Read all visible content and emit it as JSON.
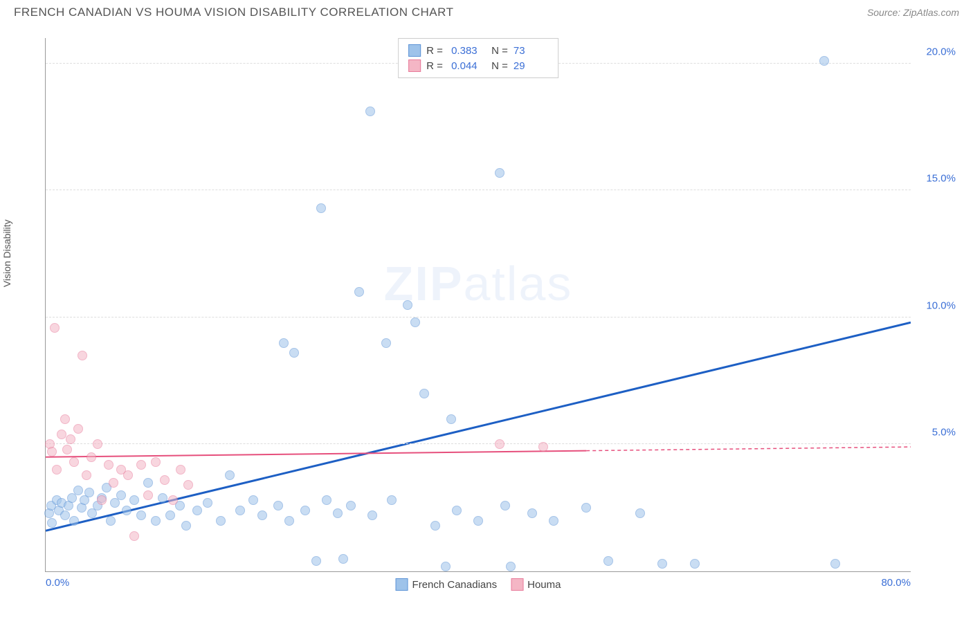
{
  "header": {
    "title": "FRENCH CANADIAN VS HOUMA VISION DISABILITY CORRELATION CHART",
    "source": "Source: ZipAtlas.com"
  },
  "chart": {
    "type": "scatter",
    "ylabel": "Vision Disability",
    "watermark": "ZIPatlas",
    "background_color": "#ffffff",
    "grid_color": "#dddddd",
    "axis_color": "#999999",
    "xlim": [
      0,
      80
    ],
    "ylim": [
      0,
      21
    ],
    "xtick_labels": [
      {
        "pos": 0,
        "label": "0.0%"
      },
      {
        "pos": 80,
        "label": "80.0%"
      }
    ],
    "ytick_labels": [
      {
        "pos": 5,
        "label": "5.0%"
      },
      {
        "pos": 10,
        "label": "10.0%"
      },
      {
        "pos": 15,
        "label": "15.0%"
      },
      {
        "pos": 20,
        "label": "20.0%"
      }
    ],
    "marker_radius": 7,
    "series": [
      {
        "name": "French Canadians",
        "fill": "#9ec3ea",
        "stroke": "#5c93d6",
        "R": "0.383",
        "N": "73",
        "trend": {
          "x1": 0,
          "y1": 1.6,
          "x2": 80,
          "y2": 9.8,
          "solid_to_x": 80,
          "color": "#1d5fc4",
          "width": 3
        },
        "points": [
          [
            0.3,
            2.3
          ],
          [
            0.5,
            2.6
          ],
          [
            0.6,
            1.9
          ],
          [
            1.0,
            2.8
          ],
          [
            1.2,
            2.4
          ],
          [
            1.5,
            2.7
          ],
          [
            1.8,
            2.2
          ],
          [
            2.1,
            2.6
          ],
          [
            2.4,
            2.9
          ],
          [
            2.6,
            2.0
          ],
          [
            3.0,
            3.2
          ],
          [
            3.3,
            2.5
          ],
          [
            3.6,
            2.8
          ],
          [
            4.0,
            3.1
          ],
          [
            4.3,
            2.3
          ],
          [
            4.8,
            2.6
          ],
          [
            5.2,
            2.9
          ],
          [
            5.6,
            3.3
          ],
          [
            6.0,
            2.0
          ],
          [
            6.4,
            2.7
          ],
          [
            7.0,
            3.0
          ],
          [
            7.5,
            2.4
          ],
          [
            8.2,
            2.8
          ],
          [
            8.8,
            2.2
          ],
          [
            9.5,
            3.5
          ],
          [
            10.2,
            2.0
          ],
          [
            10.8,
            2.9
          ],
          [
            11.5,
            2.2
          ],
          [
            12.4,
            2.6
          ],
          [
            13.0,
            1.8
          ],
          [
            14.0,
            2.4
          ],
          [
            15.0,
            2.7
          ],
          [
            16.2,
            2.0
          ],
          [
            17.0,
            3.8
          ],
          [
            18.0,
            2.4
          ],
          [
            19.2,
            2.8
          ],
          [
            20.0,
            2.2
          ],
          [
            21.5,
            2.6
          ],
          [
            22.0,
            9.0
          ],
          [
            22.5,
            2.0
          ],
          [
            23.0,
            8.6
          ],
          [
            24.0,
            2.4
          ],
          [
            25.0,
            0.4
          ],
          [
            25.5,
            14.3
          ],
          [
            26.0,
            2.8
          ],
          [
            27.0,
            2.3
          ],
          [
            27.5,
            0.5
          ],
          [
            28.2,
            2.6
          ],
          [
            29.0,
            11.0
          ],
          [
            30.0,
            18.1
          ],
          [
            30.2,
            2.2
          ],
          [
            31.5,
            9.0
          ],
          [
            32.0,
            2.8
          ],
          [
            33.5,
            10.5
          ],
          [
            34.2,
            9.8
          ],
          [
            35.0,
            7.0
          ],
          [
            36.0,
            1.8
          ],
          [
            37.0,
            0.2
          ],
          [
            37.5,
            6.0
          ],
          [
            38.0,
            2.4
          ],
          [
            40.0,
            2.0
          ],
          [
            42.0,
            15.7
          ],
          [
            42.5,
            2.6
          ],
          [
            43.0,
            0.2
          ],
          [
            45.0,
            2.3
          ],
          [
            47.0,
            2.0
          ],
          [
            50.0,
            2.5
          ],
          [
            52.0,
            0.4
          ],
          [
            55.0,
            2.3
          ],
          [
            57.0,
            0.3
          ],
          [
            60.0,
            0.3
          ],
          [
            72.0,
            20.1
          ],
          [
            73.0,
            0.3
          ]
        ]
      },
      {
        "name": "Houma",
        "fill": "#f4b6c5",
        "stroke": "#e87a9a",
        "R": "0.044",
        "N": "29",
        "trend": {
          "x1": 0,
          "y1": 4.5,
          "x2": 80,
          "y2": 4.9,
          "solid_to_x": 50,
          "color": "#e64f7c",
          "width": 2
        },
        "points": [
          [
            0.4,
            5.0
          ],
          [
            0.6,
            4.7
          ],
          [
            0.8,
            9.6
          ],
          [
            1.0,
            4.0
          ],
          [
            1.5,
            5.4
          ],
          [
            1.8,
            6.0
          ],
          [
            2.0,
            4.8
          ],
          [
            2.3,
            5.2
          ],
          [
            2.6,
            4.3
          ],
          [
            3.0,
            5.6
          ],
          [
            3.4,
            8.5
          ],
          [
            3.8,
            3.8
          ],
          [
            4.2,
            4.5
          ],
          [
            4.8,
            5.0
          ],
          [
            5.2,
            2.8
          ],
          [
            5.8,
            4.2
          ],
          [
            6.3,
            3.5
          ],
          [
            7.0,
            4.0
          ],
          [
            7.6,
            3.8
          ],
          [
            8.2,
            1.4
          ],
          [
            8.8,
            4.2
          ],
          [
            9.5,
            3.0
          ],
          [
            10.2,
            4.3
          ],
          [
            11.0,
            3.6
          ],
          [
            11.8,
            2.8
          ],
          [
            12.5,
            4.0
          ],
          [
            13.2,
            3.4
          ],
          [
            42.0,
            5.0
          ],
          [
            46.0,
            4.9
          ]
        ]
      }
    ],
    "legend_bottom": [
      {
        "label": "French Canadians",
        "fill": "#9ec3ea",
        "stroke": "#5c93d6"
      },
      {
        "label": "Houma",
        "fill": "#f4b6c5",
        "stroke": "#e87a9a"
      }
    ]
  }
}
